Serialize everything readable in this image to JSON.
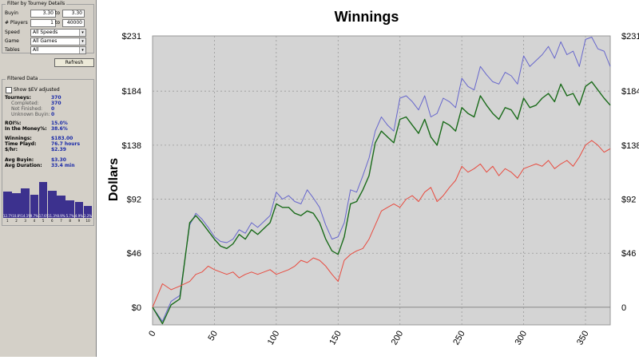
{
  "filter": {
    "title": "Filter by Tourney Details",
    "buyin_label": "Buyin",
    "buyin_from": "3.30",
    "to_label": "to",
    "buyin_to": "3.30",
    "players_label": "# Players",
    "players_from": "1",
    "players_to": "40000",
    "speed_label": "Speed",
    "speed_value": "All Speeds",
    "game_label": "Game",
    "game_value": "All Games",
    "tables_label": "Tables",
    "tables_value": "All",
    "refresh_label": "Refresh"
  },
  "filtered": {
    "title": "Filtered Data",
    "show_ev_label": "Show $EV adjusted",
    "tourneys_label": "Tourneys:",
    "tourneys_value": "370",
    "completed_label": "Completed:",
    "completed_value": "370",
    "not_finished_label": "Not Finished:",
    "not_finished_value": "0",
    "unknown_buyin_label": "Unknown Buyin:",
    "unknown_buyin_value": "0",
    "roi_label": "ROI%:",
    "roi_value": "15.0%",
    "itm_label": "In the Money%:",
    "itm_value": "38.6%",
    "winnings_label": "Winnings:",
    "winnings_value": "$183.00",
    "time_label": "Time Playd:",
    "time_value": "76.7 hours",
    "per_hr_label": "$/hr:",
    "per_hr_value": "$2.39",
    "avg_buyin_label": "Avg Buyin:",
    "avg_buyin_value": "$3.30",
    "avg_duration_label": "Avg Duration:",
    "avg_duration_value": "33.4 min"
  },
  "histogram": {
    "values": [
      0.54,
      0.5,
      0.62,
      0.47,
      0.76,
      0.56,
      0.45,
      0.32,
      0.28,
      0.2
    ],
    "bar_labels": [
      "12.7%",
      "10.8%",
      "14.1%",
      "9.7%",
      "17.6%",
      "11.3%",
      "8.9%",
      "5.7%",
      "4.9%",
      "2.2%"
    ],
    "positions": [
      "1",
      "2",
      "3",
      "4",
      "5",
      "6",
      "7",
      "8",
      "9",
      "10"
    ],
    "color": "#3c318e"
  },
  "chart_data": {
    "type": "line",
    "title": "Winnings",
    "ylabel": "Dollars",
    "xlabel": "",
    "xlim": [
      0,
      370
    ],
    "ylim": [
      -15,
      231
    ],
    "x_ticks": [
      "0",
      "50",
      "100",
      "150",
      "200",
      "250",
      "300",
      "350"
    ],
    "y_ticks_left": [
      "$0",
      "$46",
      "$92",
      "$138",
      "$184",
      "$231"
    ],
    "y_ticks_right": [
      "0",
      "$46",
      "$92",
      "$138",
      "$184",
      "$231"
    ],
    "background": "#d4d4d4",
    "grid": true,
    "series": [
      {
        "color": "#6666cc",
        "x": [
          0,
          8,
          15,
          22,
          30,
          35,
          40,
          45,
          50,
          55,
          60,
          65,
          70,
          75,
          80,
          85,
          90,
          95,
          100,
          105,
          110,
          115,
          120,
          125,
          130,
          135,
          140,
          145,
          150,
          155,
          160,
          165,
          170,
          175,
          180,
          185,
          190,
          195,
          200,
          205,
          210,
          215,
          220,
          225,
          230,
          235,
          240,
          245,
          250,
          255,
          260,
          265,
          270,
          275,
          280,
          285,
          290,
          295,
          300,
          305,
          310,
          315,
          320,
          325,
          330,
          335,
          340,
          345,
          350,
          355,
          360,
          365,
          370
        ],
        "y": [
          0,
          -12,
          5,
          10,
          70,
          80,
          75,
          68,
          60,
          56,
          55,
          58,
          66,
          63,
          72,
          68,
          73,
          78,
          98,
          92,
          95,
          90,
          88,
          100,
          93,
          85,
          70,
          58,
          60,
          72,
          100,
          98,
          112,
          127,
          150,
          162,
          155,
          150,
          178,
          180,
          175,
          168,
          180,
          162,
          165,
          178,
          175,
          170,
          195,
          188,
          185,
          205,
          198,
          192,
          190,
          200,
          197,
          190,
          214,
          205,
          210,
          215,
          222,
          212,
          226,
          215,
          218,
          205,
          228,
          230,
          220,
          218,
          205
        ]
      },
      {
        "color": "#1a6b1a",
        "x": [
          0,
          8,
          15,
          22,
          30,
          35,
          40,
          45,
          50,
          55,
          60,
          65,
          70,
          75,
          80,
          85,
          90,
          95,
          100,
          105,
          110,
          115,
          120,
          125,
          130,
          135,
          140,
          145,
          150,
          155,
          160,
          165,
          170,
          175,
          180,
          185,
          190,
          195,
          200,
          205,
          210,
          215,
          220,
          225,
          230,
          235,
          240,
          245,
          250,
          255,
          260,
          265,
          270,
          275,
          280,
          285,
          290,
          295,
          300,
          305,
          310,
          315,
          320,
          325,
          330,
          335,
          340,
          345,
          350,
          355,
          360,
          365,
          370
        ],
        "y": [
          0,
          -14,
          2,
          7,
          72,
          78,
          72,
          65,
          58,
          52,
          50,
          54,
          62,
          58,
          66,
          62,
          67,
          72,
          88,
          85,
          85,
          80,
          78,
          82,
          80,
          72,
          58,
          48,
          45,
          60,
          88,
          90,
          100,
          112,
          140,
          150,
          145,
          140,
          160,
          162,
          155,
          148,
          160,
          145,
          138,
          158,
          155,
          150,
          170,
          165,
          162,
          180,
          172,
          165,
          160,
          170,
          168,
          160,
          178,
          170,
          172,
          178,
          182,
          175,
          190,
          180,
          182,
          172,
          188,
          192,
          185,
          178,
          172
        ]
      },
      {
        "color": "#e84a3e",
        "x": [
          0,
          8,
          15,
          22,
          30,
          35,
          40,
          45,
          50,
          55,
          60,
          65,
          70,
          75,
          80,
          85,
          90,
          95,
          100,
          105,
          110,
          115,
          120,
          125,
          130,
          135,
          140,
          145,
          150,
          155,
          160,
          165,
          170,
          175,
          180,
          185,
          190,
          195,
          200,
          205,
          210,
          215,
          220,
          225,
          230,
          235,
          240,
          245,
          250,
          255,
          260,
          265,
          270,
          275,
          280,
          285,
          290,
          295,
          300,
          305,
          310,
          315,
          320,
          325,
          330,
          335,
          340,
          345,
          350,
          355,
          360,
          365,
          370
        ],
        "y": [
          0,
          20,
          15,
          18,
          22,
          28,
          30,
          35,
          32,
          30,
          28,
          30,
          25,
          28,
          30,
          28,
          30,
          32,
          28,
          30,
          32,
          35,
          40,
          38,
          42,
          40,
          35,
          28,
          22,
          40,
          45,
          48,
          50,
          58,
          70,
          82,
          85,
          88,
          85,
          92,
          95,
          90,
          98,
          102,
          90,
          95,
          102,
          108,
          120,
          115,
          118,
          122,
          115,
          120,
          112,
          118,
          115,
          110,
          118,
          120,
          122,
          120,
          125,
          118,
          122,
          125,
          120,
          128,
          138,
          142,
          138,
          132,
          135
        ]
      }
    ]
  }
}
